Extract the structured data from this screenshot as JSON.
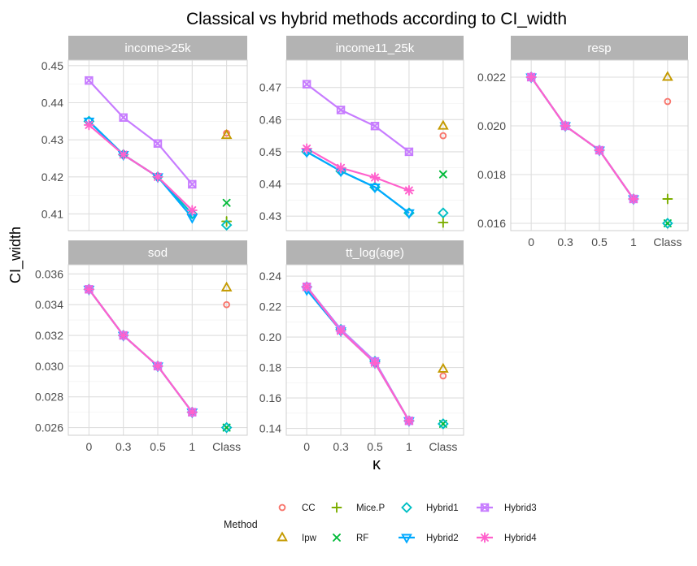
{
  "chart_data": {
    "type": "line",
    "title": "Classical vs hybrid methods according to CI_width",
    "xlabel": "κ",
    "ylabel": "CI_width",
    "categories": [
      "0",
      "0.3",
      "0.5",
      "1",
      "Class"
    ],
    "grid": true,
    "legend": {
      "title": "Method",
      "position": "bottom",
      "entries": [
        {
          "name": "CC",
          "shape": "circle",
          "color": "#F8766D"
        },
        {
          "name": "Mice.P",
          "shape": "plus",
          "color": "#7CAE00"
        },
        {
          "name": "Hybrid1",
          "shape": "diamond",
          "color": "#00BFC4"
        },
        {
          "name": "Hybrid3",
          "shape": "square-x",
          "color": "#C77CFF"
        },
        {
          "name": "Ipw",
          "shape": "triangle-up",
          "color": "#C49A00"
        },
        {
          "name": "RF",
          "shape": "cross",
          "color": "#00BA38"
        },
        {
          "name": "Hybrid2",
          "shape": "triangle-down",
          "color": "#00A9FF"
        },
        {
          "name": "Hybrid4",
          "shape": "asterisk",
          "color": "#FF61CC"
        }
      ]
    },
    "panels": [
      {
        "strip": "income>25k",
        "ylim": [
          0.4055,
          0.4515
        ],
        "yticks": [
          0.41,
          0.42,
          0.43,
          0.44,
          0.45
        ],
        "yticklabels": [
          "0.41",
          "0.42",
          "0.43",
          "0.44",
          "0.45"
        ],
        "show_x_ticks": false,
        "classical": {
          "CC": 0.4318,
          "Ipw": 0.4312,
          "Mice.P": 0.408,
          "RF": 0.413,
          "Hybrid1": 0.407
        },
        "hybrid": {
          "Hybrid1": [
            0.435,
            0.426,
            0.42,
            0.41
          ],
          "Hybrid2": [
            0.435,
            0.426,
            0.42,
            0.409
          ],
          "Hybrid3": [
            0.446,
            0.436,
            0.429,
            0.418
          ],
          "Hybrid4": [
            0.434,
            0.426,
            0.42,
            0.411
          ]
        }
      },
      {
        "strip": "income11_25k",
        "ylim": [
          0.4255,
          0.4785
        ],
        "yticks": [
          0.43,
          0.44,
          0.45,
          0.46,
          0.47
        ],
        "yticklabels": [
          "0.43",
          "0.44",
          "0.45",
          "0.46",
          "0.47"
        ],
        "show_x_ticks": false,
        "classical": {
          "CC": 0.455,
          "Ipw": 0.458,
          "Mice.P": 0.428,
          "RF": 0.443,
          "Hybrid1": 0.431
        },
        "hybrid": {
          "Hybrid1": [
            0.45,
            0.444,
            0.439,
            0.431
          ],
          "Hybrid2": [
            0.45,
            0.444,
            0.439,
            0.431
          ],
          "Hybrid3": [
            0.471,
            0.463,
            0.458,
            0.45
          ],
          "Hybrid4": [
            0.451,
            0.445,
            0.442,
            0.438
          ]
        }
      },
      {
        "strip": "resp",
        "ylim": [
          0.0157,
          0.0227
        ],
        "yticks": [
          0.016,
          0.018,
          0.02,
          0.022
        ],
        "yticklabels": [
          "0.016",
          "0.018",
          "0.020",
          "0.022"
        ],
        "show_x_ticks": true,
        "classical": {
          "CC": 0.021,
          "Ipw": 0.022,
          "Mice.P": 0.017,
          "RF": 0.016,
          "Hybrid1": 0.016
        },
        "hybrid": {
          "Hybrid1": [
            0.022,
            0.02,
            0.019,
            0.017
          ],
          "Hybrid2": [
            0.022,
            0.02,
            0.019,
            0.017
          ],
          "Hybrid3": [
            0.022,
            0.02,
            0.019,
            0.017
          ],
          "Hybrid4": [
            0.022,
            0.02,
            0.019,
            0.017
          ]
        }
      },
      {
        "strip": "sod",
        "ylim": [
          0.0255,
          0.0366
        ],
        "yticks": [
          0.026,
          0.028,
          0.03,
          0.032,
          0.034,
          0.036
        ],
        "yticklabels": [
          "0.026",
          "0.028",
          "0.030",
          "0.032",
          "0.034",
          "0.036"
        ],
        "show_x_ticks": true,
        "classical": {
          "CC": 0.034,
          "Ipw": 0.0351,
          "Hybrid1": 0.026,
          "RF": 0.026
        },
        "hybrid": {
          "Hybrid1": [
            0.035,
            0.032,
            0.03,
            0.027
          ],
          "Hybrid2": [
            0.035,
            0.032,
            0.03,
            0.027
          ],
          "Hybrid3": [
            0.035,
            0.032,
            0.03,
            0.027
          ],
          "Hybrid4": [
            0.035,
            0.032,
            0.03,
            0.027
          ]
        }
      },
      {
        "strip": "tt_log(age)",
        "ylim": [
          0.1355,
          0.2475
        ],
        "yticks": [
          0.14,
          0.16,
          0.18,
          0.2,
          0.22,
          0.24
        ],
        "yticklabels": [
          "0.14",
          "0.16",
          "0.18",
          "0.20",
          "0.22",
          "0.24"
        ],
        "show_x_ticks": true,
        "classical": {
          "CC": 0.1745,
          "Ipw": 0.179,
          "Hybrid1": 0.143,
          "RF": 0.143
        },
        "hybrid": {
          "Hybrid1": [
            0.233,
            0.205,
            0.184,
            0.145
          ],
          "Hybrid2": [
            0.231,
            0.204,
            0.183,
            0.145
          ],
          "Hybrid3": [
            0.233,
            0.205,
            0.184,
            0.145
          ],
          "Hybrid4": [
            0.233,
            0.204,
            0.183,
            0.145
          ]
        }
      }
    ]
  }
}
